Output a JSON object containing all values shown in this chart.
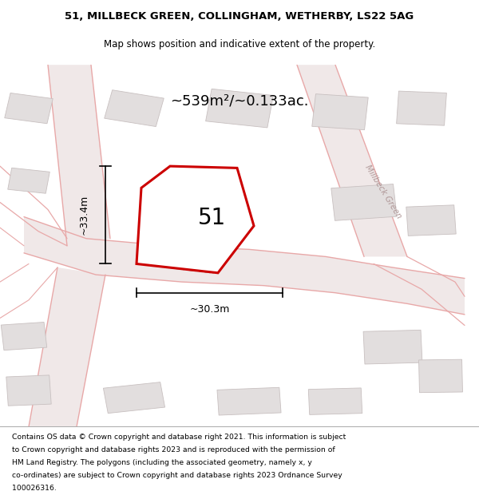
{
  "title_line1": "51, MILLBECK GREEN, COLLINGHAM, WETHERBY, LS22 5AG",
  "title_line2": "Map shows position and indicative extent of the property.",
  "area_text": "~539m²/~0.133ac.",
  "property_number": "51",
  "dim_vertical": "~33.4m",
  "dim_horizontal": "~30.3m",
  "street_name_main": "Millbeck Green",
  "street_name_side": "Millbeck Green",
  "footer_lines": [
    "Contains OS data © Crown copyright and database right 2021. This information is subject",
    "to Crown copyright and database rights 2023 and is reproduced with the permission of",
    "HM Land Registry. The polygons (including the associated geometry, namely x, y",
    "co-ordinates) are subject to Crown copyright and database rights 2023 Ordnance Survey",
    "100026316."
  ],
  "map_bg": "#f7f3f3",
  "road_fill": "#f0e8e8",
  "road_line": "#e8a8a8",
  "building_fill": "#e2dede",
  "building_edge": "#c8c0c0",
  "plot_fill": "#ffffff",
  "plot_edge": "#cc0000",
  "figsize": [
    6.0,
    6.25
  ],
  "dpi": 100
}
